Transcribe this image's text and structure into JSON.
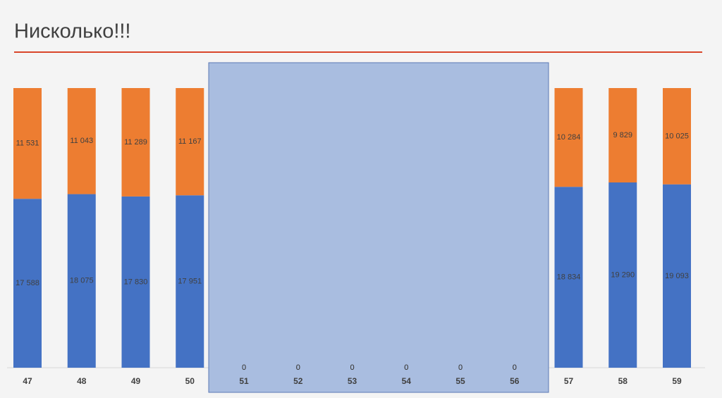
{
  "chart_data": {
    "type": "stacked-bar",
    "title": "Нисколько!!!",
    "categories": [
      "47",
      "48",
      "49",
      "50",
      "51",
      "52",
      "53",
      "54",
      "55",
      "56",
      "57",
      "58",
      "59"
    ],
    "series": [
      {
        "color": "#4472c4",
        "values": [
          17588,
          18075,
          17830,
          17951,
          0,
          0,
          0,
          0,
          0,
          0,
          18834,
          19290,
          19093
        ],
        "value_labels": [
          "17 588",
          "18 075",
          "17 830",
          "17 951",
          "0",
          "0",
          "0",
          "0",
          "0",
          "0",
          "18 834",
          "19 290",
          "19 093"
        ]
      },
      {
        "color": "#ed7d31",
        "values": [
          11531,
          11043,
          11289,
          11167,
          0,
          0,
          0,
          0,
          0,
          0,
          10284,
          9829,
          10025
        ],
        "value_labels": [
          "11 531",
          "11 043",
          "11 289",
          "11 167",
          "0",
          "0",
          "0",
          "0",
          "0",
          "0",
          "10 284",
          "9 829",
          "10 025"
        ]
      }
    ]
  }
}
